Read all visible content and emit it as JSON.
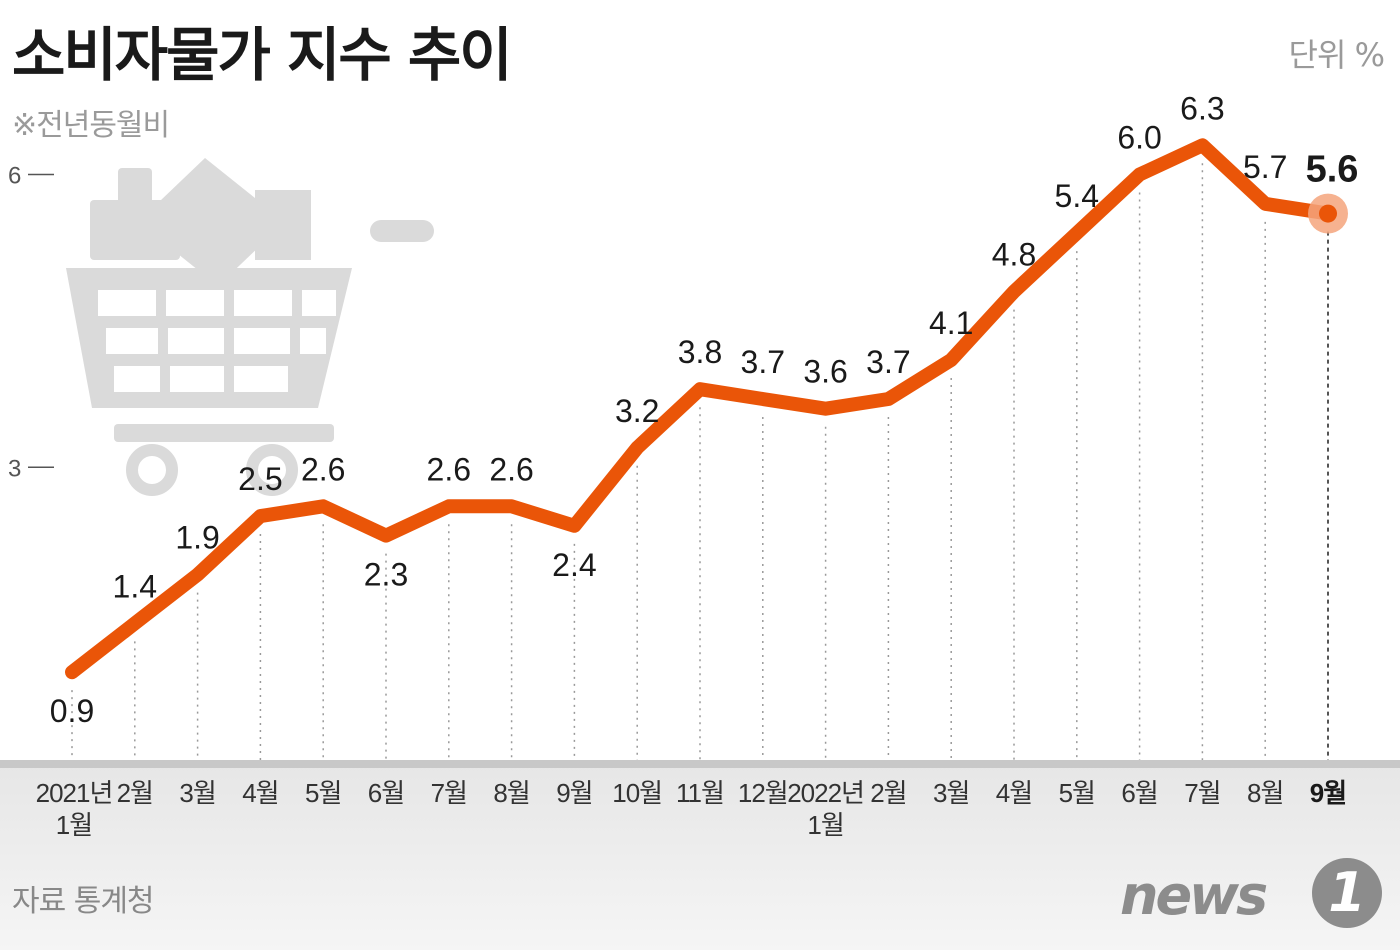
{
  "header": {
    "title": "소비자물가 지수 추이",
    "subtitle": "※전년동월비",
    "unit": "단위 %"
  },
  "footer": {
    "source": "자료 통계청",
    "logo_text": "news",
    "logo_badge": "1"
  },
  "colors": {
    "line": "#ea5508",
    "highlight": "#f5a47c",
    "guide": "#999999"
  },
  "icons": [
    "shopping-cart-icon"
  ],
  "chart_data": {
    "type": "line",
    "title": "소비자물가 지수 추이",
    "subtitle": "※전년동월비",
    "unit": "단위 %",
    "categories": [
      [
        "2021년",
        "1월"
      ],
      [
        "2월"
      ],
      [
        "3월"
      ],
      [
        "4월"
      ],
      [
        "5월"
      ],
      [
        "6월"
      ],
      [
        "7월"
      ],
      [
        "8월"
      ],
      [
        "9월"
      ],
      [
        "10월"
      ],
      [
        "11월"
      ],
      [
        "12월"
      ],
      [
        "2022년",
        "1월"
      ],
      [
        "2월"
      ],
      [
        "3월"
      ],
      [
        "4월"
      ],
      [
        "5월"
      ],
      [
        "6월"
      ],
      [
        "7월"
      ],
      [
        "8월"
      ],
      [
        "9월"
      ]
    ],
    "values": [
      0.9,
      1.4,
      1.9,
      2.5,
      2.6,
      2.3,
      2.6,
      2.6,
      2.4,
      3.2,
      3.8,
      3.7,
      3.6,
      3.7,
      4.1,
      4.8,
      5.4,
      6.0,
      6.3,
      5.7,
      5.6
    ],
    "labels": [
      "0.9",
      "1.4",
      "1.9",
      "2.5",
      "2.6",
      "2.3",
      "2.6",
      "2.6",
      "2.4",
      "3.2",
      "3.8",
      "3.7",
      "3.6",
      "3.7",
      "4.1",
      "4.8",
      "5.4",
      "6.0",
      "6.3",
      "5.7",
      "5.6"
    ],
    "yticks": [
      3,
      6
    ],
    "ylim": [
      0,
      6.6
    ],
    "grid": false,
    "highlight_last": true
  }
}
